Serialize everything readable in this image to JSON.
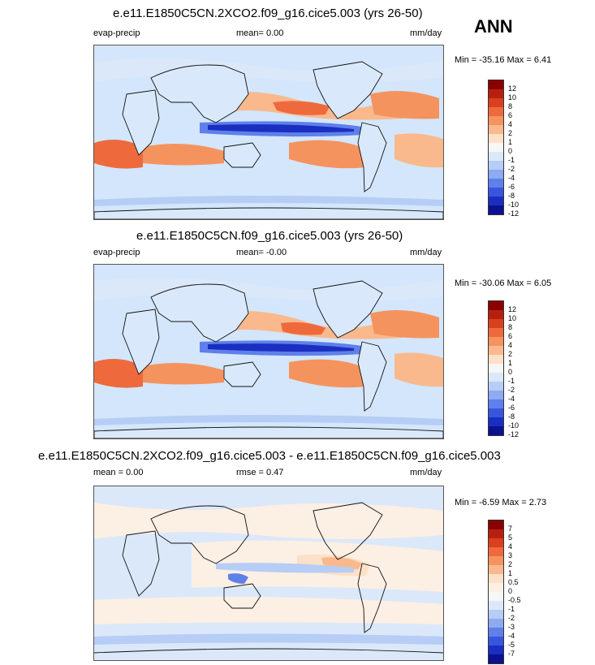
{
  "season": "ANN",
  "colors": {
    "ocean_base": "#d3e6fb",
    "land": "#d9e9fb",
    "coast": "#111111"
  },
  "panels": [
    {
      "title": "e.e11.E1850C5CN.2XCO2.f09_g16.cice5.003 (yrs 26-50)",
      "left_label": "evap-precip",
      "center_label": "mean=   0.00",
      "right_label": "mm/day",
      "minmax": "Min = -35.16 Max =   6.41",
      "colorbar": {
        "colors": [
          "#8b0000",
          "#b81f0f",
          "#d9401f",
          "#ee6a3d",
          "#f5935f",
          "#f9b98d",
          "#fde0c8",
          "#f7f7f7",
          "#dbe8f9",
          "#b6cdf5",
          "#8eaaf0",
          "#5f80ea",
          "#3a55dd",
          "#1a2fc0",
          "#0c118f"
        ],
        "labels": [
          "12",
          "10",
          "8",
          "6",
          "4",
          "2",
          "1",
          "0",
          "-1",
          "-2",
          "-4",
          "-6",
          "-8",
          "-10",
          "-12"
        ]
      }
    },
    {
      "title": "e.e11.E1850C5CN.f09_g16.cice5.003 (yrs 26-50)",
      "left_label": "evap-precip",
      "center_label": "mean=  -0.00",
      "right_label": "mm/day",
      "minmax": "Min = -30.06 Max =   6.05",
      "colorbar": {
        "colors": [
          "#8b0000",
          "#b81f0f",
          "#d9401f",
          "#ee6a3d",
          "#f5935f",
          "#f9b98d",
          "#fde0c8",
          "#f7f7f7",
          "#dbe8f9",
          "#b6cdf5",
          "#8eaaf0",
          "#5f80ea",
          "#3a55dd",
          "#1a2fc0",
          "#0c118f"
        ],
        "labels": [
          "12",
          "10",
          "8",
          "6",
          "4",
          "2",
          "1",
          "0",
          "-1",
          "-2",
          "-4",
          "-6",
          "-8",
          "-10",
          "-12"
        ]
      }
    },
    {
      "title": "e.e11.E1850C5CN.2XCO2.f09_g16.cice5.003 - e.e11.E1850C5CN.f09_g16.cice5.003",
      "left_label": "mean =   0.00",
      "center_label": "rmse =   0.47",
      "right_label": "mm/day",
      "minmax": "Min =  -6.59 Max =   2.73",
      "colorbar": {
        "colors": [
          "#8b0000",
          "#b81f0f",
          "#d9401f",
          "#ee6a3d",
          "#f5935f",
          "#f9b98d",
          "#fde0c8",
          "#fcefe4",
          "#f7f7f7",
          "#dbe8f9",
          "#b6cdf5",
          "#8eaaf0",
          "#5f80ea",
          "#3a55dd",
          "#1a2fc0",
          "#0c118f"
        ],
        "labels": [
          "7",
          "5",
          "4",
          "3",
          "2",
          "1",
          "0.5",
          "0",
          "-0.5",
          "-1",
          "-2",
          "-3",
          "-4",
          "-5",
          "-7"
        ]
      }
    }
  ]
}
